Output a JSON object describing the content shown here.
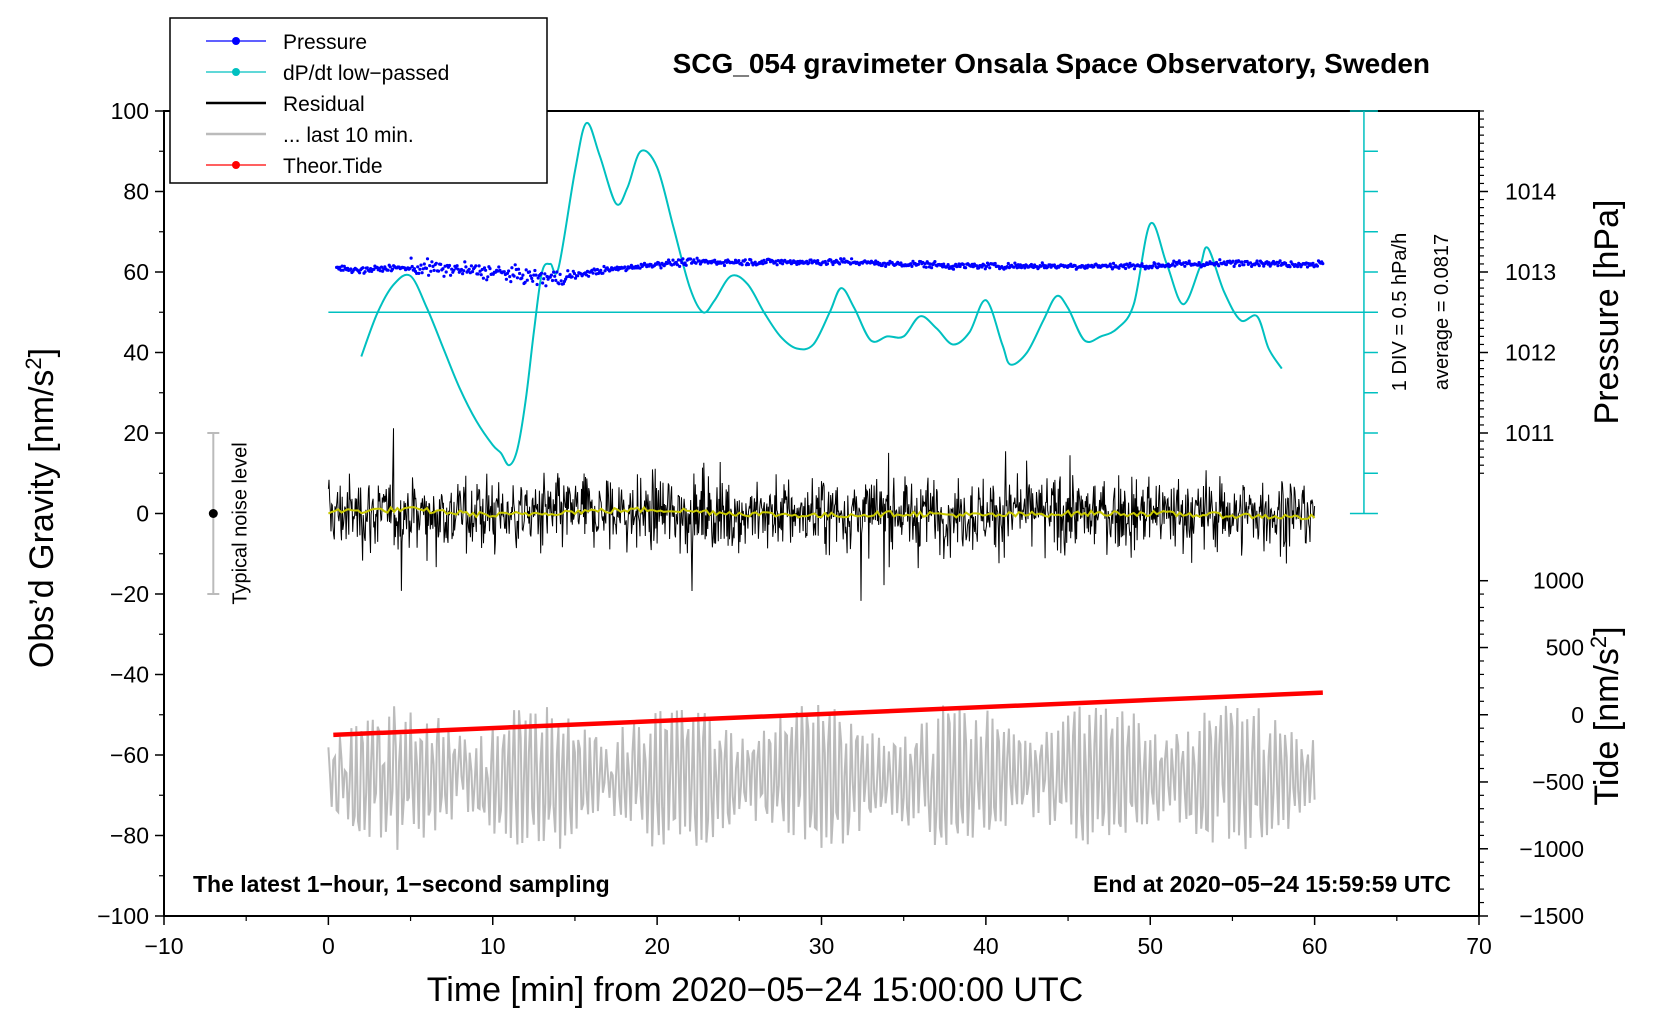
{
  "chart_data": {
    "type": "line",
    "title": "SCG_054 gravimeter Onsala Space Observatory, Sweden",
    "xlabel": "Time [min] from 2020−05−24 15:00:00 UTC",
    "ylabel_left_main": "Obs’d Gravity [nm/s",
    "ylabel_left_sup": "2",
    "ylabel_left_end": "]",
    "ylabel_right_pressure": "Pressure [hPa]",
    "ylabel_right_tide_main": "Tide [nm/s",
    "ylabel_right_tide_sup": "2",
    "ylabel_right_tide_end": "]",
    "xlim": [
      -10,
      70
    ],
    "ylim": [
      -100,
      100
    ],
    "x_ticks": [
      {
        "value": -10,
        "label": "−10"
      },
      {
        "value": 0,
        "label": "0"
      },
      {
        "value": 10,
        "label": "10"
      },
      {
        "value": 20,
        "label": "20"
      },
      {
        "value": 30,
        "label": "30"
      },
      {
        "value": 40,
        "label": "40"
      },
      {
        "value": 50,
        "label": "50"
      },
      {
        "value": 60,
        "label": "60"
      },
      {
        "value": 70,
        "label": "70"
      }
    ],
    "y_ticks": [
      {
        "value": 100,
        "label": "100"
      },
      {
        "value": 80,
        "label": "80"
      },
      {
        "value": 60,
        "label": "60"
      },
      {
        "value": 40,
        "label": "40"
      },
      {
        "value": 20,
        "label": "20"
      },
      {
        "value": 0,
        "label": "0"
      },
      {
        "value": -20,
        "label": "−20"
      },
      {
        "value": -40,
        "label": "−40"
      },
      {
        "value": -60,
        "label": "−60"
      },
      {
        "value": -80,
        "label": "−80"
      },
      {
        "value": -100,
        "label": "−100"
      }
    ],
    "pressure_axis": {
      "ticks": [
        {
          "value": 1014,
          "label": "1014",
          "y": 80
        },
        {
          "value": 1013,
          "label": "1013",
          "y": 60
        },
        {
          "value": 1012,
          "label": "1012",
          "y": 40
        },
        {
          "value": 1011,
          "label": "1011",
          "y": 20
        }
      ]
    },
    "tide_axis": {
      "ticks": [
        {
          "value": 1000,
          "label": "1000",
          "y": -16.7
        },
        {
          "value": 500,
          "label": "500",
          "y": -33.3
        },
        {
          "value": 0,
          "label": "0",
          "y": -50
        },
        {
          "value": -500,
          "label": "−500",
          "y": -66.7
        },
        {
          "value": -1000,
          "label": "−1000",
          "y": -83.3
        },
        {
          "value": -1500,
          "label": "−1500",
          "y": -100
        }
      ]
    },
    "dpdt_scale": {
      "x": 63,
      "y_top": 100,
      "y_bottom": 0,
      "divisions": 10,
      "label_div": "1 DIV = 0.5 hPa/h",
      "label_avg": "average = 0.0817",
      "baseline_y": 50
    },
    "legend": [
      {
        "label": "Pressure",
        "color": "#0000ff",
        "marker": true
      },
      {
        "label": "dP/dt low−passed",
        "color": "#00c0c0",
        "marker": true
      },
      {
        "label": "Residual",
        "color": "#000000",
        "marker": false
      },
      {
        "label": "... last 10 min.",
        "color": "#bbbbbb",
        "marker": false
      },
      {
        "label": "Theor.Tide",
        "color": "#ff0000",
        "marker": true
      }
    ],
    "noise_bar": {
      "x": -7,
      "y": 0,
      "low": -20,
      "high": 20,
      "label": "Typical noise level"
    },
    "annotation_left": "The latest 1−hour, 1−second sampling",
    "annotation_right": "End at 2020−05−24 15:59:59 UTC",
    "series": [
      {
        "name": "dP/dt low-passed",
        "color": "#00c0c0",
        "x": [
          2,
          3,
          4,
          5,
          6,
          7,
          8,
          9,
          10,
          10.5,
          11,
          11.5,
          12,
          12.5,
          13,
          13.5,
          14,
          15,
          15.7,
          16.5,
          17.5,
          18.2,
          19,
          20,
          21,
          22,
          22.8,
          23.5,
          24.5,
          25.5,
          26.5,
          27.5,
          28.5,
          29.5,
          30.5,
          31.2,
          32,
          33,
          34,
          35,
          36,
          37,
          38,
          39,
          40,
          41,
          41.5,
          42.5,
          43.5,
          44.3,
          45,
          46,
          47,
          48,
          49,
          50,
          51,
          52,
          53,
          53.5,
          54.5,
          55.5,
          56.5,
          57.2,
          58
        ],
        "y": [
          39,
          50,
          57,
          59,
          51,
          41,
          31,
          23,
          17,
          15,
          12,
          16,
          28,
          45,
          60,
          62,
          61,
          85,
          97,
          89,
          77,
          81,
          90,
          86,
          71,
          56,
          50,
          53,
          59,
          57,
          50,
          44,
          41,
          42,
          50,
          56,
          51,
          43,
          44,
          44,
          49,
          46,
          42,
          45,
          53,
          42,
          37,
          40,
          48,
          54,
          51,
          43,
          44,
          46,
          52,
          72,
          62,
          52,
          61,
          66,
          55,
          48,
          49,
          41,
          36
        ]
      },
      {
        "name": "Pressure",
        "color": "#0000ff",
        "x": [
          0.5,
          2,
          4,
          6,
          8,
          10,
          11,
          12,
          13,
          14,
          15,
          16,
          18,
          20,
          22,
          24,
          26,
          28,
          30,
          32,
          34,
          36,
          38,
          40,
          42,
          44,
          46,
          48,
          50,
          52,
          54,
          56,
          58,
          60.5
        ],
        "y": [
          61,
          60.5,
          61,
          61,
          60.5,
          60,
          59.5,
          59,
          58.5,
          58.5,
          59,
          60,
          61,
          62,
          62.5,
          62.5,
          62.5,
          62.5,
          62.5,
          62.5,
          62,
          62,
          61.5,
          61.5,
          61.5,
          61.5,
          61.5,
          61.5,
          61.5,
          62,
          62,
          62.5,
          62,
          62
        ]
      },
      {
        "name": "Residual",
        "color": "#000000",
        "x_range": [
          0,
          60
        ],
        "y_band": [
          -28,
          22
        ]
      },
      {
        "name": "Residual smoothed",
        "color": "#c8c800",
        "x": [
          0,
          5,
          10,
          15,
          20,
          25,
          30,
          35,
          40,
          45,
          50,
          55,
          60
        ],
        "y": [
          0.5,
          1,
          -0.5,
          0.5,
          1,
          0,
          -0.5,
          0,
          -0.5,
          0,
          0,
          -0.5,
          -1
        ]
      },
      {
        "name": "... last 10 min.",
        "color": "#bbbbbb",
        "x_range": [
          0,
          60
        ],
        "y_band": [
          -85,
          -40
        ]
      },
      {
        "name": "Theor.Tide",
        "color": "#ff0000",
        "x": [
          0.3,
          60.5
        ],
        "y": [
          -55,
          -44.5
        ]
      }
    ]
  }
}
